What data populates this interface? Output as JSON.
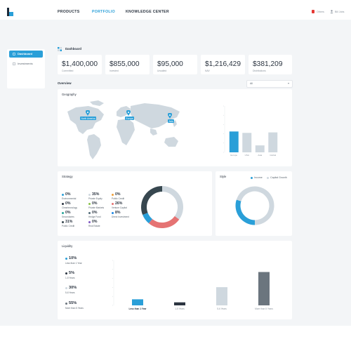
{
  "nav": {
    "tabs": [
      {
        "label": "PRODUCTS",
        "active": false
      },
      {
        "label": "PORTFOLIO",
        "active": true
      },
      {
        "label": "KNOWLEDGE CENTER",
        "active": false
      }
    ],
    "notifications_label": "Others",
    "user_label": "Bill Jobs"
  },
  "sidebar": {
    "items": [
      {
        "label": "Dashboard",
        "icon": "dashboard-icon",
        "active": true
      },
      {
        "label": "Investments",
        "icon": "investments-icon",
        "active": false
      }
    ]
  },
  "header": {
    "title": "Dashboard"
  },
  "stats": [
    {
      "value": "$1,400,000",
      "label": "Committed"
    },
    {
      "value": "$855,000",
      "label": "Invested"
    },
    {
      "value": "$95,000",
      "label": "Uncalled"
    },
    {
      "value": "$1,216,429",
      "label": "NAV"
    },
    {
      "value": "$381,209",
      "label": "Distributions"
    }
  ],
  "overview": {
    "title": "Overview",
    "filter_value": "All"
  },
  "geography": {
    "title": "Geography",
    "map_pins": [
      "North America",
      "Europe",
      "Asia"
    ],
    "chart_data": {
      "type": "bar",
      "categories": [
        "Europe",
        "USA",
        "Asia",
        "Global"
      ],
      "values": [
        45,
        42,
        15,
        43
      ],
      "ylim": [
        0,
        100
      ],
      "highlight": "Europe",
      "colors": {
        "highlight": "#2a9fd8",
        "default": "#cfd8df"
      }
    }
  },
  "strategy": {
    "title": "Strategy",
    "items": [
      {
        "pct": "0%",
        "label": "Environmental",
        "color": "#2a9fd8"
      },
      {
        "pct": "35%",
        "label": "Private Equity",
        "color": "#cfd8df"
      },
      {
        "pct": "0%",
        "label": "Public Credit",
        "color": "#f0a03a"
      },
      {
        "pct": "0%",
        "label": "Cleantecnology",
        "color": "#2b3440"
      },
      {
        "pct": "0%",
        "label": "Private Markets",
        "color": "#8bc34a"
      },
      {
        "pct": "26%",
        "label": "Venture Capital",
        "color": "#e57373"
      },
      {
        "pct": "0%",
        "label": "Secondaries",
        "color": "#26a69a"
      },
      {
        "pct": "0%",
        "label": "Hedge Fund",
        "color": "#546e7a"
      },
      {
        "pct": "8%",
        "label": "Direct Investment",
        "color": "#1e88e5"
      },
      {
        "pct": "31%",
        "label": "Public Credit",
        "color": "#37474f"
      },
      {
        "pct": "0%",
        "label": "Real Estate",
        "color": "#7e57c2"
      }
    ],
    "chart_data": {
      "type": "pie",
      "categories": [
        "Private Equity",
        "Venture Capital",
        "Direct Investment",
        "Public Credit"
      ],
      "values": [
        35,
        26,
        8,
        31
      ],
      "colors": [
        "#cfd8df",
        "#e57373",
        "#2a9fd8",
        "#37474f"
      ]
    }
  },
  "style": {
    "title": "Style",
    "legend": [
      {
        "label": "Income",
        "color": "#2a9fd8"
      },
      {
        "label": "Capital Growth",
        "color": "#cfd8df"
      }
    ],
    "chart_data": {
      "type": "pie",
      "categories": [
        "Income",
        "Capital Growth"
      ],
      "values": [
        30,
        70
      ],
      "colors": [
        "#2a9fd8",
        "#cfd8df"
      ]
    }
  },
  "liquidity": {
    "title": "Liquidity",
    "items": [
      {
        "pct": "10%",
        "label": "Less than 1 Year",
        "color": "#2a9fd8"
      },
      {
        "pct": "5%",
        "label": "1-5 Years",
        "color": "#2b3440"
      },
      {
        "pct": "30%",
        "label": "5-6 Years",
        "color": "#cfd8df"
      },
      {
        "pct": "55%",
        "label": "More than 5 Years",
        "color": "#6b757e"
      }
    ],
    "chart_data": {
      "type": "bar",
      "categories": [
        "Less than 1 Year",
        "1-5 Years",
        "5-6 Years",
        "More than 5 Years"
      ],
      "values": [
        10,
        5,
        30,
        55
      ],
      "ylim": [
        0,
        100
      ],
      "highlight": "Less than 1 Year",
      "colors": [
        "#2a9fd8",
        "#2b3440",
        "#cfd8df",
        "#6b757e"
      ]
    }
  }
}
